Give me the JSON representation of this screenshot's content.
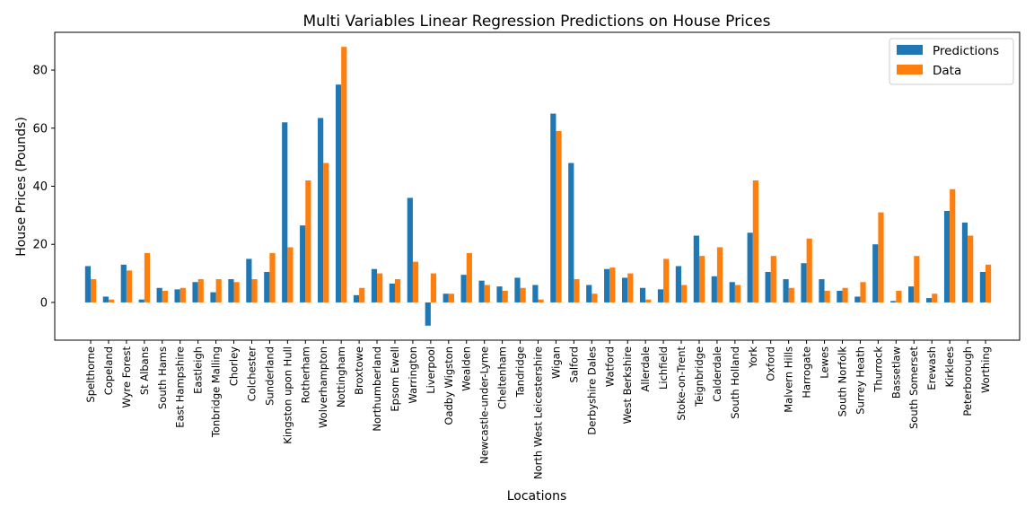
{
  "chart_data": {
    "type": "bar",
    "title": "Multi Variables Linear Regression Predictions on House Prices",
    "xlabel": "Locations",
    "ylabel": "House Prices (Pounds)",
    "ylim": [
      -13,
      93
    ],
    "yticks": [
      0,
      20,
      40,
      60,
      80
    ],
    "grid": false,
    "legend_position": "top-right",
    "categories": [
      "Spelthorne",
      "Copeland",
      "Wyre Forest",
      "St Albans",
      "South Hams",
      "East Hampshire",
      "Eastleigh",
      "Tonbridge Malling",
      "Chorley",
      "Colchester",
      "Sunderland",
      "Kingston upon Hull",
      "Rotherham",
      "Wolverhampton",
      "Nottingham",
      "Broxtowe",
      "Northumberland",
      "Epsom Ewell",
      "Warrington",
      "Liverpool",
      "Oadby Wigston",
      "Wealden",
      "Newcastle-under-Lyme",
      "Cheltenham",
      "Tandridge",
      "North West Leicestershire",
      "Wigan",
      "Salford",
      "Derbyshire Dales",
      "Watford",
      "West Berkshire",
      "Allerdale",
      "Lichfield",
      "Stoke-on-Trent",
      "Teignbridge",
      "Calderdale",
      "South Holland",
      "York",
      "Oxford",
      "Malvern Hills",
      "Harrogate",
      "Lewes",
      "South Norfolk",
      "Surrey Heath",
      "Thurrock",
      "Bassetlaw",
      "South Somerset",
      "Erewash",
      "Kirklees",
      "Peterborough",
      "Worthing"
    ],
    "series": [
      {
        "name": "Predictions",
        "color": "#1f77b4",
        "values": [
          12.5,
          2,
          13,
          1,
          5,
          4.5,
          7,
          3.5,
          8,
          15,
          10.5,
          62,
          26.5,
          63.5,
          75,
          2.5,
          11.5,
          6.5,
          36,
          -8,
          3,
          9.5,
          7.5,
          5.5,
          8.5,
          6,
          65,
          48,
          6,
          11.5,
          8.5,
          5,
          4.5,
          12.5,
          23,
          9,
          7,
          24,
          10.5,
          8,
          13.5,
          8,
          4,
          2,
          20,
          0.5,
          5.5,
          1.5,
          31.5,
          27.5,
          10.5
        ]
      },
      {
        "name": "Data",
        "color": "#ff7f0e",
        "values": [
          8,
          1,
          11,
          17,
          4,
          5,
          8,
          8,
          7,
          8,
          17,
          19,
          42,
          48,
          88,
          5,
          10,
          8,
          14,
          10,
          3,
          17,
          6,
          4,
          5,
          1,
          59,
          8,
          3,
          12,
          10,
          1,
          15,
          6,
          16,
          19,
          6,
          42,
          16,
          5,
          22,
          4,
          5,
          7,
          31,
          4,
          16,
          3,
          39,
          23,
          13
        ]
      }
    ]
  }
}
